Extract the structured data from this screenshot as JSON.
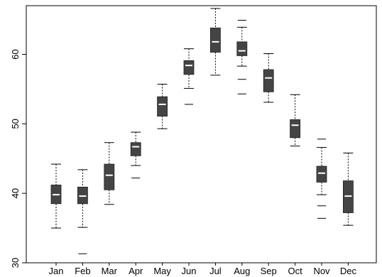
{
  "chart_data": {
    "type": "boxplot",
    "title": "",
    "xlabel": "",
    "ylabel": "",
    "ylim": [
      30,
      67
    ],
    "yticks": [
      30,
      40,
      50,
      60
    ],
    "ytick_labels": [
      "30",
      "40",
      "50",
      "60"
    ],
    "grid": false,
    "categories": [
      "Jan",
      "Feb",
      "Mar",
      "Apr",
      "May",
      "Jun",
      "Jul",
      "Aug",
      "Sep",
      "Oct",
      "Nov",
      "Dec"
    ],
    "boxes": [
      {
        "whisker_low": 35.0,
        "q1": 38.5,
        "median": 39.8,
        "q3": 41.2,
        "whisker_high": 44.2,
        "outliers": []
      },
      {
        "whisker_low": 35.1,
        "q1": 38.5,
        "median": 39.6,
        "q3": 40.9,
        "whisker_high": 43.4,
        "outliers": [
          31.3
        ]
      },
      {
        "whisker_low": 38.4,
        "q1": 40.5,
        "median": 42.6,
        "q3": 44.2,
        "whisker_high": 47.3,
        "outliers": []
      },
      {
        "whisker_low": 44.0,
        "q1": 45.4,
        "median": 46.7,
        "q3": 47.3,
        "whisker_high": 48.8,
        "outliers": [
          42.2
        ]
      },
      {
        "whisker_low": 49.3,
        "q1": 51.1,
        "median": 52.8,
        "q3": 53.9,
        "whisker_high": 55.7,
        "outliers": []
      },
      {
        "whisker_low": 55.1,
        "q1": 57.1,
        "median": 58.4,
        "q3": 59.1,
        "whisker_high": 60.8,
        "outliers": [
          52.8
        ]
      },
      {
        "whisker_low": 57.0,
        "q1": 60.3,
        "median": 61.8,
        "q3": 63.8,
        "whisker_high": 66.6,
        "outliers": []
      },
      {
        "whisker_low": 58.3,
        "q1": 59.8,
        "median": 60.5,
        "q3": 61.8,
        "whisker_high": 63.9,
        "outliers": [
          64.9,
          56.4,
          54.3
        ]
      },
      {
        "whisker_low": 53.1,
        "q1": 54.6,
        "median": 56.6,
        "q3": 57.8,
        "whisker_high": 60.1,
        "outliers": []
      },
      {
        "whisker_low": 46.8,
        "q1": 48.0,
        "median": 49.8,
        "q3": 50.6,
        "whisker_high": 54.2,
        "outliers": []
      },
      {
        "whisker_low": 39.8,
        "q1": 41.6,
        "median": 42.9,
        "q3": 43.9,
        "whisker_high": 46.6,
        "outliers": [
          47.8,
          38.2,
          36.4
        ]
      },
      {
        "whisker_low": 35.4,
        "q1": 37.2,
        "median": 39.6,
        "q3": 41.8,
        "whisker_high": 45.8,
        "outliers": []
      }
    ],
    "colors": {
      "box_fill": "#444444",
      "median": "#ffffff",
      "whisker": "#000000",
      "axis": "#000000"
    }
  }
}
